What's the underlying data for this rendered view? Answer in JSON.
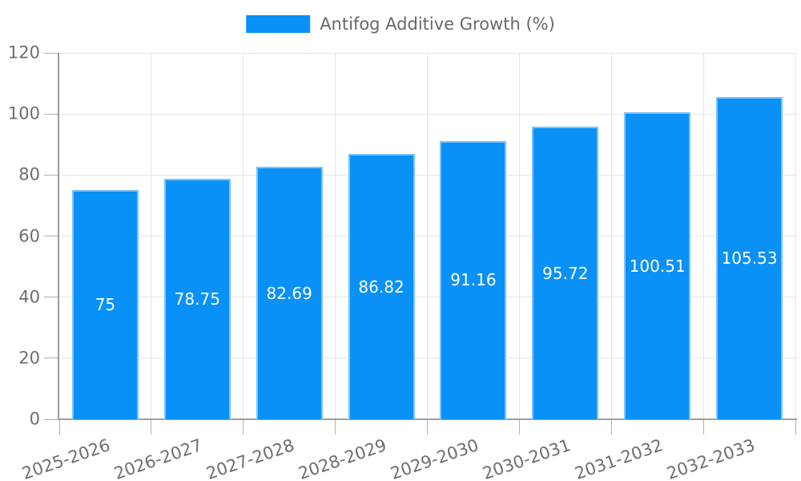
{
  "chart_data": {
    "type": "bar",
    "title": "",
    "legend": "Antifog Additive Growth (%)",
    "legend_position": "top-center",
    "categories": [
      "2025-2026",
      "2026-2027",
      "2027-2028",
      "2028-2029",
      "2029-2030",
      "2030-2031",
      "2031-2032",
      "2032-2033"
    ],
    "values": [
      75,
      78.75,
      82.69,
      86.82,
      91.16,
      95.72,
      100.51,
      105.53
    ],
    "value_labels": [
      "75",
      "78.75",
      "82.69",
      "86.82",
      "91.16",
      "95.72",
      "100.51",
      "105.53"
    ],
    "xlabel": "",
    "ylabel": "",
    "ylim": [
      0,
      120
    ],
    "yticks": [
      0,
      20,
      40,
      60,
      80,
      100,
      120
    ],
    "grid": true,
    "x_label_rotation_deg": -19,
    "colors": {
      "bar_fill": "#0991f8",
      "bar_border": "#7cc3f9",
      "gridline": "#e5e5e5",
      "axis_line": "#9e9e9e",
      "tick_mark": "#b0b0b0",
      "tick_text": "#6e6e6e",
      "legend_text": "#686868",
      "value_label_text": "#ffffff",
      "background": "#ffffff"
    }
  }
}
